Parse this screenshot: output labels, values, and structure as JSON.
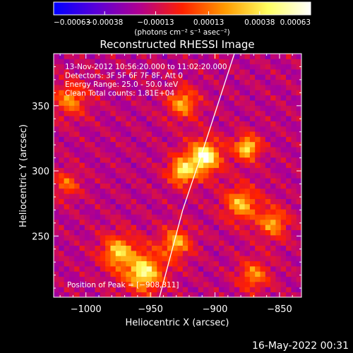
{
  "chart_data": {
    "type": "heatmap",
    "title": "Reconstructed RHESSI Image",
    "xlabel": "Heliocentric X (arcsec)",
    "ylabel": "Heliocentric Y (arcsec)",
    "xlim": [
      -1025,
      -833
    ],
    "ylim": [
      203,
      390
    ],
    "xticks": [
      -1000,
      -950,
      -900,
      -850
    ],
    "xtick_labels": [
      "−1000",
      "−950",
      "−900",
      "−850"
    ],
    "yticks": [
      250,
      300,
      350
    ],
    "ytick_labels": [
      "250",
      "300",
      "350"
    ],
    "colorbar": {
      "range": [
        -0.00063,
        0.00063
      ],
      "ticks": [
        -0.00063,
        -0.00038,
        -0.00013,
        0.00013,
        0.00038,
        0.00063
      ],
      "tick_labels": [
        "−0.00063",
        "−0.00038",
        "−0.00013",
        "0.00013",
        "0.00038",
        "0.00063"
      ],
      "unit_label": "(photons cm⁻² s⁻¹ asec⁻²)",
      "colormap": [
        "#0000ff",
        "#5a00d8",
        "#b00090",
        "#ff2000",
        "#ff9a00",
        "#ffff60",
        "#ffffff"
      ]
    },
    "annotations": [
      "13-Nov-2012 10:56:20.000 to 11:02:20.000",
      "Detectors: 3F 5F 6F 7F 8F, Att 0",
      "Energy Range: 25.0 - 50.0 keV",
      "Clean    Total counts: 1.81E+04",
      "Position of Peak = [−908,311]"
    ],
    "peak": [
      -908,
      311
    ],
    "limb_curve": [
      [
        -943,
        203
      ],
      [
        -925,
        270
      ],
      [
        -908,
        320
      ],
      [
        -885,
        390
      ]
    ],
    "sources": [
      {
        "x": -908,
        "y": 311,
        "intensity": 0.00063,
        "sigma": 9
      },
      {
        "x": -925,
        "y": 300,
        "intensity": 0.00042,
        "sigma": 8
      },
      {
        "x": -875,
        "y": 318,
        "intensity": 0.00045,
        "sigma": 7
      },
      {
        "x": -880,
        "y": 275,
        "intensity": 0.0003,
        "sigma": 10
      },
      {
        "x": -955,
        "y": 222,
        "intensity": 0.00048,
        "sigma": 11
      },
      {
        "x": -975,
        "y": 238,
        "intensity": 0.00033,
        "sigma": 10
      },
      {
        "x": -930,
        "y": 245,
        "intensity": 0.00028,
        "sigma": 9
      },
      {
        "x": -1012,
        "y": 355,
        "intensity": 0.0002,
        "sigma": 10
      },
      {
        "x": -1015,
        "y": 290,
        "intensity": 0.00012,
        "sigma": 8
      },
      {
        "x": -925,
        "y": 352,
        "intensity": 0.00026,
        "sigma": 9
      },
      {
        "x": -855,
        "y": 260,
        "intensity": 0.00024,
        "sigma": 9
      },
      {
        "x": -870,
        "y": 220,
        "intensity": 0.0002,
        "sigma": 9
      }
    ]
  },
  "footer": {
    "timestamp": "16-May-2022 00:31"
  }
}
